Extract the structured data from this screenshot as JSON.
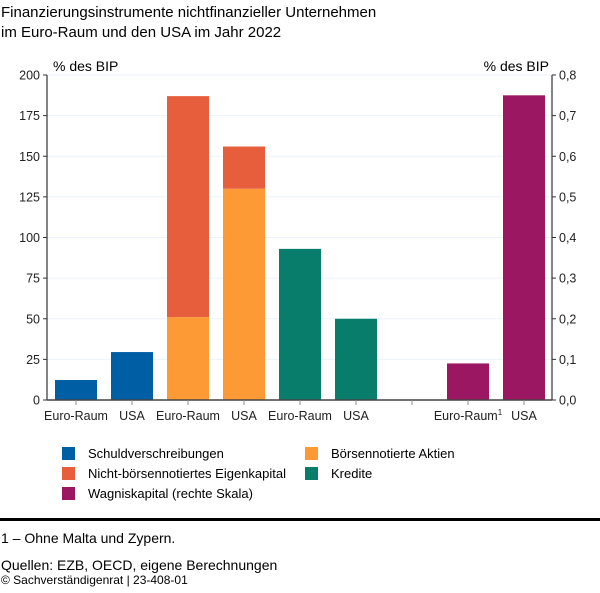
{
  "title_lines": [
    "Finanzierungsinstrumente nichtfinanzieller Unternehmen",
    "im Euro-Raum und den USA im Jahr 2022"
  ],
  "chart_data": {
    "type": "bar",
    "stacked": true,
    "title": "Finanzierungsinstrumente nichtfinanzieller Unternehmen im Euro-Raum und den USA im Jahr 2022",
    "ylabel_left": "% des BIP",
    "ylabel_right": "% des BIP",
    "ylim_left": [
      0,
      200
    ],
    "yticks_left": [
      "0",
      "25",
      "50",
      "75",
      "100",
      "125",
      "150",
      "175",
      "200"
    ],
    "ylim_right": [
      0,
      0.8
    ],
    "yticks_right": [
      "0,0",
      "0,1",
      "0,2",
      "0,3",
      "0,4",
      "0,5",
      "0,6",
      "0,7",
      "0,8"
    ],
    "grid": true,
    "categories": [
      "Euro-Raum",
      "USA",
      "Euro-Raum",
      "USA",
      "Euro-Raum",
      "USA",
      "",
      "Euro-Raum",
      "USA"
    ],
    "category_superscripts": [
      "",
      "",
      "",
      "",
      "",
      "",
      "",
      "1",
      ""
    ],
    "series": [
      {
        "name": "Schuldverschreibungen",
        "color": "#005ea5",
        "axis": "left",
        "values": [
          12.3,
          29.5,
          null,
          null,
          null,
          null,
          null,
          null,
          null
        ]
      },
      {
        "name": "Börsennotierte Aktien",
        "color": "#fd9a35",
        "axis": "left",
        "values": [
          null,
          null,
          51,
          130,
          null,
          null,
          null,
          null,
          null
        ]
      },
      {
        "name": "Nicht-börsennotiertes Eigenkapital",
        "color": "#e65e3c",
        "axis": "left",
        "values": [
          null,
          null,
          136,
          26,
          null,
          null,
          null,
          null,
          null
        ]
      },
      {
        "name": "Kredite",
        "color": "#097d6c",
        "axis": "left",
        "values": [
          null,
          null,
          null,
          null,
          93,
          50,
          null,
          null,
          null
        ]
      },
      {
        "name": "Wagniskapital (rechte Skala)",
        "color": "#9b1762",
        "axis": "right",
        "values": [
          null,
          null,
          null,
          null,
          null,
          null,
          null,
          0.09,
          0.75
        ]
      }
    ],
    "legend": [
      {
        "label": "Schuldverschreibungen",
        "color": "#005ea5"
      },
      {
        "label": "Börsennotierte Aktien",
        "color": "#fd9a35"
      },
      {
        "label": "Nicht-börsennotiertes Eigenkapital",
        "color": "#e65e3c"
      },
      {
        "label": "Kredite",
        "color": "#097d6c"
      },
      {
        "label": "Wagniskapital (rechte Skala)",
        "color": "#9b1762"
      }
    ],
    "legend_position": "bottom"
  },
  "footnote": "1 – Ohne Malta und Zypern.",
  "sources": "Quellen: EZB, OECD, eigene Berechnungen",
  "copyright": "© Sachverständigenrat | 23-408-01"
}
